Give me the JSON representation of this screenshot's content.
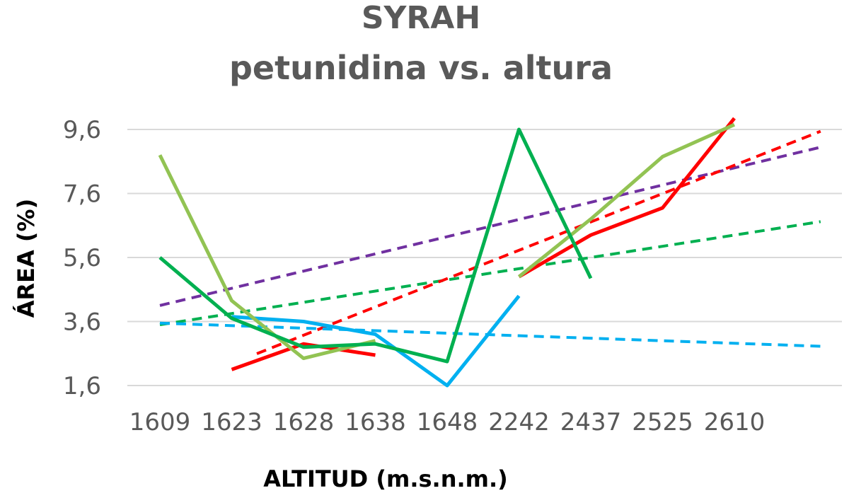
{
  "chart_data": {
    "type": "line",
    "title": "SYRAH",
    "subtitle": "petunidina vs. altura",
    "xlabel": "ALTITUD (m.s.n.m.)",
    "ylabel": "ÁREA (%)",
    "categories": [
      "1609",
      "1623",
      "1628",
      "1638",
      "1648",
      "2242",
      "2437",
      "2525",
      "2610"
    ],
    "yticks": [
      "1,6",
      "3,6",
      "5,6",
      "7,6",
      "9,6"
    ],
    "ylim": [
      1.6,
      9.6
    ],
    "grid": true,
    "legend": "none",
    "series": [
      {
        "color": "#00b050",
        "style": "solid",
        "values": [
          5.6,
          3.7,
          2.8,
          2.9,
          2.35,
          9.6,
          4.95,
          null,
          null
        ]
      },
      {
        "color": "#92c353",
        "style": "solid",
        "values": [
          8.8,
          4.25,
          2.45,
          3.0,
          null,
          5.0,
          6.8,
          8.75,
          9.75
        ]
      },
      {
        "color": "#00b0f0",
        "style": "solid",
        "values": [
          null,
          3.75,
          3.6,
          3.2,
          1.6,
          4.4,
          null,
          null,
          null
        ]
      },
      {
        "color": "#ff0000",
        "style": "solid",
        "values": [
          null,
          2.1,
          2.9,
          2.55,
          null,
          5.0,
          6.3,
          7.15,
          9.95
        ]
      },
      {
        "color": "#7030a0",
        "style": "dashed",
        "values": [
          4.1,
          4.64,
          5.18,
          5.71,
          6.25,
          6.79,
          7.33,
          7.86,
          8.4
        ],
        "x_extent": [
          0,
          9.2
        ]
      },
      {
        "color": "#00b050",
        "style": "dashed",
        "values": [
          3.5,
          3.85,
          4.2,
          4.55,
          4.9,
          5.25,
          5.6,
          5.95,
          6.3
        ],
        "x_extent": [
          0,
          9.2
        ]
      },
      {
        "color": "#ff0000",
        "style": "dashed",
        "values": [
          1.4,
          2.28,
          3.17,
          4.05,
          4.94,
          5.82,
          6.71,
          7.59,
          8.48
        ],
        "x_extent": [
          1.35,
          9.2
        ]
      },
      {
        "color": "#00b0f0",
        "style": "dashed",
        "values": [
          3.55,
          3.47,
          3.39,
          3.31,
          3.23,
          3.16,
          3.08,
          3.0,
          2.92
        ],
        "x_extent": [
          0,
          9.2
        ]
      }
    ]
  }
}
